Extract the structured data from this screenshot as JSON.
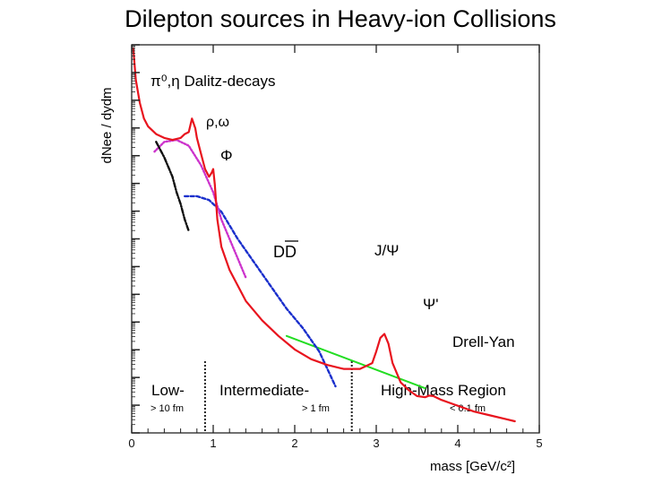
{
  "slide": {
    "title": "Dilepton sources in Heavy-ion Collisions"
  },
  "chart_data": {
    "type": "line",
    "xlabel": "mass [GeV/c²]",
    "ylabel": "dNee / dydm",
    "xlim": [
      0,
      5
    ],
    "ylim": [
      0,
      1
    ],
    "ylog": true,
    "y_tick_labels": false,
    "x_ticks": [
      "0",
      "1",
      "2",
      "3",
      "4",
      "5"
    ],
    "colors": {
      "total": "#e8141e",
      "dalitz": "#111111",
      "vector": "#cc33cc",
      "charm": "#1a2fcc",
      "drell_yan": "#22dd22"
    },
    "series": [
      {
        "key": "total",
        "color": "#e8141e",
        "x": [
          0.02,
          0.05,
          0.1,
          0.15,
          0.2,
          0.3,
          0.4,
          0.5,
          0.6,
          0.65,
          0.7,
          0.74,
          0.78,
          0.8,
          0.85,
          0.9,
          0.95,
          0.98,
          1.0,
          1.02,
          1.05,
          1.1,
          1.2,
          1.4,
          1.6,
          1.8,
          2.0,
          2.2,
          2.4,
          2.6,
          2.8,
          2.95,
          3.0,
          3.05,
          3.1,
          3.15,
          3.2,
          3.3,
          3.4,
          3.5,
          3.6,
          3.65,
          3.7,
          3.8,
          4.0,
          4.2,
          4.4,
          4.6,
          4.7
        ],
        "y": [
          0.99,
          0.91,
          0.85,
          0.81,
          0.79,
          0.77,
          0.76,
          0.755,
          0.76,
          0.77,
          0.775,
          0.81,
          0.785,
          0.76,
          0.72,
          0.68,
          0.66,
          0.67,
          0.68,
          0.64,
          0.55,
          0.48,
          0.42,
          0.34,
          0.29,
          0.25,
          0.215,
          0.19,
          0.175,
          0.165,
          0.165,
          0.18,
          0.21,
          0.245,
          0.255,
          0.23,
          0.18,
          0.13,
          0.11,
          0.095,
          0.092,
          0.096,
          0.095,
          0.085,
          0.07,
          0.055,
          0.045,
          0.035,
          0.03
        ]
      },
      {
        "key": "dalitz",
        "color": "#111111",
        "x": [
          0.3,
          0.4,
          0.5,
          0.55,
          0.6,
          0.65,
          0.7
        ],
        "y": [
          0.75,
          0.71,
          0.66,
          0.62,
          0.59,
          0.55,
          0.52
        ]
      },
      {
        "key": "vector_meson",
        "color": "#cc33cc",
        "x": [
          0.28,
          0.4,
          0.55,
          0.7,
          0.85,
          1.0,
          1.1,
          1.2,
          1.3,
          1.4
        ],
        "y": [
          0.725,
          0.75,
          0.755,
          0.74,
          0.69,
          0.62,
          0.55,
          0.5,
          0.45,
          0.4
        ]
      },
      {
        "key": "charm_DD",
        "color": "#1a2fcc",
        "x": [
          0.65,
          0.8,
          0.95,
          1.1,
          1.3,
          1.5,
          1.7,
          1.9,
          2.1,
          2.3,
          2.5
        ],
        "y": [
          0.61,
          0.61,
          0.6,
          0.57,
          0.5,
          0.44,
          0.38,
          0.32,
          0.27,
          0.21,
          0.12
        ]
      },
      {
        "key": "drell_yan",
        "color": "#22dd22",
        "x": [
          1.9,
          3.6
        ],
        "y": [
          0.25,
          0.115
        ]
      }
    ],
    "annotations": {
      "dalitz": "π⁰,η Dalitz-decays",
      "rho_omega": "ρ,ω",
      "phi": "Φ",
      "dd": "DD",
      "jpsi": "J/Ψ",
      "psi_prime": "Ψ'",
      "drell_yan": "Drell-Yan"
    },
    "regions": {
      "boundaries": [
        0.9,
        2.7
      ],
      "low": {
        "label": "Low-",
        "sub": "> 10 fm"
      },
      "intermediate": {
        "label": "Intermediate-",
        "sub": "> 1 fm"
      },
      "high": {
        "label": "High-Mass Region",
        "sub": "< 0.1 fm"
      }
    }
  }
}
